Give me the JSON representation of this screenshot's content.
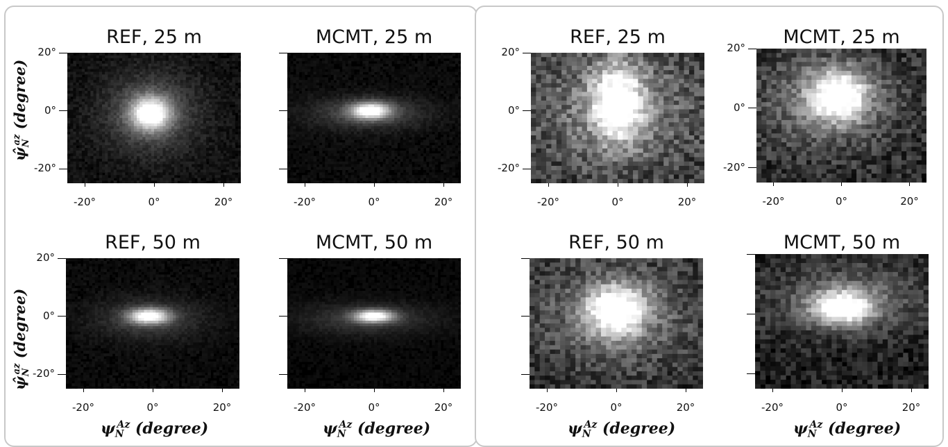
{
  "axis_labels": {
    "x": "ψNAz (degree)",
    "y": "ψ̂Naz (degree)",
    "x_symbol": "ψ",
    "x_sub": "N",
    "x_sup": "Az",
    "x_unit": "(degree)",
    "y_symbol": "ψ̂",
    "y_sub": "N",
    "y_sup": "az",
    "y_unit": "(degree)"
  },
  "colors": {
    "background": "#000000",
    "peak": "#ffffff",
    "border": "#c8c8c8"
  },
  "chart_data": [
    {
      "id": "L1",
      "type": "heatmap",
      "title": "REF, 25 m",
      "xlim": [
        -25,
        25
      ],
      "ylim": [
        -25,
        20
      ],
      "x_ticks": [
        "-20°",
        "0°",
        "20°"
      ],
      "y_ticks": [
        "20°",
        "0°",
        "-20°"
      ],
      "blobs": [
        {
          "x": -1,
          "y": -1,
          "sx": 4,
          "sy": 4,
          "a": 0.95
        },
        {
          "x": -1,
          "y": -1,
          "sx": 10,
          "sy": 10,
          "a": 0.28
        }
      ],
      "noise": 0.12,
      "grain": 1
    },
    {
      "id": "L2",
      "type": "heatmap",
      "title": "MCMT, 25 m",
      "xlim": [
        -25,
        25
      ],
      "ylim": [
        -25,
        20
      ],
      "x_ticks": [
        "-20°",
        "0°",
        "20°"
      ],
      "y_ticks": [
        "",
        "",
        ""
      ],
      "blobs": [
        {
          "x": -1,
          "y": 0,
          "sx": 4,
          "sy": 2,
          "a": 0.95
        },
        {
          "x": -2,
          "y": -1,
          "sx": 12,
          "sy": 4,
          "a": 0.25
        }
      ],
      "noise": 0.08,
      "grain": 1
    },
    {
      "id": "L3",
      "type": "heatmap",
      "title": "REF, 50 m",
      "xlim": [
        -25,
        25
      ],
      "ylim": [
        -25,
        20
      ],
      "x_ticks": [
        "-20°",
        "0°",
        "20°"
      ],
      "y_ticks": [
        "20°",
        "0°",
        "-20°"
      ],
      "blobs": [
        {
          "x": -1,
          "y": 0,
          "sx": 4,
          "sy": 1.8,
          "a": 0.95
        },
        {
          "x": -1,
          "y": -1,
          "sx": 11,
          "sy": 5,
          "a": 0.22
        }
      ],
      "noise": 0.08,
      "grain": 1
    },
    {
      "id": "L4",
      "type": "heatmap",
      "title": "MCMT, 50 m",
      "xlim": [
        -25,
        25
      ],
      "ylim": [
        -25,
        20
      ],
      "x_ticks": [
        "-20°",
        "0°",
        "20°"
      ],
      "y_ticks": [
        "",
        "",
        ""
      ],
      "blobs": [
        {
          "x": 0,
          "y": 0,
          "sx": 4,
          "sy": 1.5,
          "a": 0.95
        },
        {
          "x": -2,
          "y": -1,
          "sx": 14,
          "sy": 4,
          "a": 0.2
        }
      ],
      "noise": 0.06,
      "grain": 1
    },
    {
      "id": "R1",
      "type": "heatmap",
      "title": "REF, 25 m",
      "xlim": [
        -25,
        25
      ],
      "ylim": [
        -25,
        20
      ],
      "x_ticks": [
        "-20°",
        "0°",
        "20°"
      ],
      "y_ticks": [
        "20°",
        "0°",
        "-20°"
      ],
      "blobs": [
        {
          "x": 0,
          "y": 3,
          "sx": 5,
          "sy": 9,
          "a": 0.85
        },
        {
          "x": 0,
          "y": 0,
          "sx": 18,
          "sy": 16,
          "a": 0.35
        }
      ],
      "noise": 0.35,
      "grain": 2
    },
    {
      "id": "R2",
      "type": "heatmap",
      "title": "MCMT, 25 m",
      "xlim": [
        -25,
        25
      ],
      "ylim": [
        -25,
        20
      ],
      "x_ticks": [
        "-20°",
        "0°",
        "20°"
      ],
      "y_ticks": [
        "20°",
        "0°",
        "-20°"
      ],
      "blobs": [
        {
          "x": -1,
          "y": 4,
          "sx": 6,
          "sy": 6,
          "a": 0.9
        },
        {
          "x": -4,
          "y": 2,
          "sx": 16,
          "sy": 12,
          "a": 0.3
        }
      ],
      "noise": 0.3,
      "grain": 2
    },
    {
      "id": "R3",
      "type": "heatmap",
      "title": "REF, 50 m",
      "xlim": [
        -25,
        25
      ],
      "ylim": [
        -25,
        20
      ],
      "x_ticks": [
        "-20°",
        "0°",
        "20°"
      ],
      "y_ticks": [
        "",
        "",
        ""
      ],
      "blobs": [
        {
          "x": 0,
          "y": 2,
          "sx": 6,
          "sy": 6,
          "a": 0.9
        },
        {
          "x": 0,
          "y": 0,
          "sx": 18,
          "sy": 14,
          "a": 0.3
        }
      ],
      "noise": 0.3,
      "grain": 2
    },
    {
      "id": "R4",
      "type": "heatmap",
      "title": "MCMT, 50 m",
      "xlim": [
        -25,
        25
      ],
      "ylim": [
        -25,
        20
      ],
      "x_ticks": [
        "-20°",
        "0°",
        "20°"
      ],
      "y_ticks": [
        "",
        "",
        ""
      ],
      "blobs": [
        {
          "x": 0,
          "y": 2,
          "sx": 6,
          "sy": 4,
          "a": 0.9
        },
        {
          "x": 2,
          "y": 5,
          "sx": 16,
          "sy": 8,
          "a": 0.3
        }
      ],
      "noise": 0.25,
      "grain": 2
    }
  ]
}
